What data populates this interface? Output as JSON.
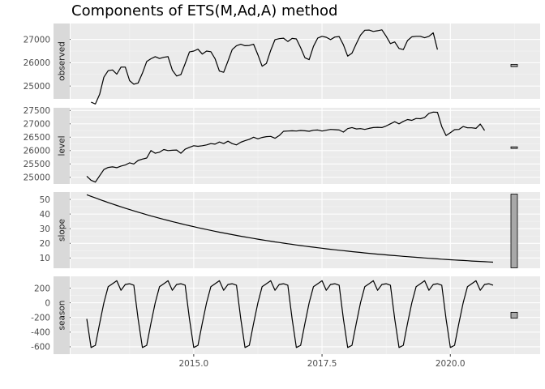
{
  "chart_data": {
    "type": "line",
    "title": "Components of ETS(M,Ad,A) method",
    "xlabel": "",
    "x_ticks": [
      "2015.0",
      "2017.5",
      "2020.0"
    ],
    "x_tick_values": [
      2015.0,
      2017.5,
      2020.0
    ],
    "xlim": [
      2012.6,
      2021.75
    ],
    "grid": true,
    "panels": [
      {
        "name": "observed",
        "ylim": [
          24450,
          27680
        ],
        "y_ticks": [
          25000,
          26000,
          27000
        ],
        "y_tick_labels": [
          "25000",
          "26000",
          "27000"
        ],
        "range_bar": [
          25830,
          25930
        ],
        "x_start": 2013.0,
        "x_step": 0.0833333,
        "values": [
          24310,
          24230,
          24650,
          25380,
          25660,
          25690,
          25510,
          25810,
          25810,
          25230,
          25080,
          25130,
          25550,
          26050,
          26170,
          26260,
          26180,
          26230,
          26260,
          25680,
          25430,
          25490,
          25960,
          26460,
          26500,
          26580,
          26370,
          26500,
          26470,
          26170,
          25640,
          25590,
          26070,
          26560,
          26730,
          26790,
          26730,
          26740,
          26790,
          26340,
          25850,
          25970,
          26530,
          26990,
          27030,
          27050,
          26910,
          27040,
          27020,
          26640,
          26210,
          26130,
          26700,
          27060,
          27130,
          27090,
          26990,
          27100,
          27120,
          26770,
          26280,
          26410,
          26810,
          27180,
          27390,
          27400,
          27340,
          27370,
          27410,
          27130,
          26820,
          26890,
          26610,
          26560,
          26950,
          27110,
          27130,
          27130,
          27070,
          27130,
          27280,
          26560
        ]
      },
      {
        "name": "level",
        "ylim": [
          24750,
          27600
        ],
        "y_ticks": [
          25000,
          25500,
          26000,
          26500,
          27000,
          27500
        ],
        "y_tick_labels": [
          "25000",
          "25500",
          "26000",
          "26500",
          "27000",
          "27500"
        ],
        "range_bar": [
          26080,
          26140
        ],
        "x_start": 2012.9167,
        "x_step": 0.0833333,
        "values": [
          25040,
          24890,
          24820,
          25060,
          25290,
          25370,
          25390,
          25360,
          25420,
          25460,
          25540,
          25500,
          25630,
          25680,
          25720,
          26000,
          25900,
          25940,
          26040,
          26000,
          26010,
          26020,
          25900,
          26050,
          26120,
          26180,
          26160,
          26180,
          26210,
          26260,
          26240,
          26320,
          26260,
          26350,
          26260,
          26210,
          26310,
          26370,
          26420,
          26500,
          26440,
          26490,
          26520,
          26530,
          26460,
          26560,
          26720,
          26730,
          26740,
          26730,
          26750,
          26740,
          26720,
          26760,
          26770,
          26730,
          26760,
          26790,
          26780,
          26770,
          26690,
          26820,
          26860,
          26810,
          26820,
          26790,
          26830,
          26860,
          26870,
          26860,
          26920,
          27000,
          27080,
          27000,
          27090,
          27160,
          27130,
          27200,
          27190,
          27240,
          27390,
          27440,
          27430,
          26900,
          26560,
          26670,
          26780,
          26790,
          26900,
          26850,
          26850,
          26830,
          26990,
          26750
        ]
      },
      {
        "name": "slope",
        "ylim": [
          3,
          55
        ],
        "y_ticks": [
          10,
          20,
          30,
          40,
          50
        ],
        "y_tick_labels": [
          "10",
          "20",
          "30",
          "40",
          "50"
        ],
        "range_bar": [
          3.3,
          53.6
        ],
        "x_start": 2012.9167,
        "x_step": 0.0833333,
        "initial": 53.2,
        "decay": 0.9791,
        "count": 96
      },
      {
        "name": "season",
        "ylim": [
          -700,
          360
        ],
        "y_ticks": [
          200,
          0,
          -200,
          -400,
          -600
        ],
        "y_tick_labels": [
          "200",
          "0",
          "-200",
          "-400",
          "-600"
        ],
        "range_bar": [
          -210,
          -130
        ],
        "x_start": 2012.9167,
        "x_step": 0.0833333,
        "period": [
          -220,
          -610,
          -580,
          -280,
          0,
          220,
          260,
          300,
          170,
          250,
          260,
          240
        ],
        "count": 96
      }
    ]
  }
}
